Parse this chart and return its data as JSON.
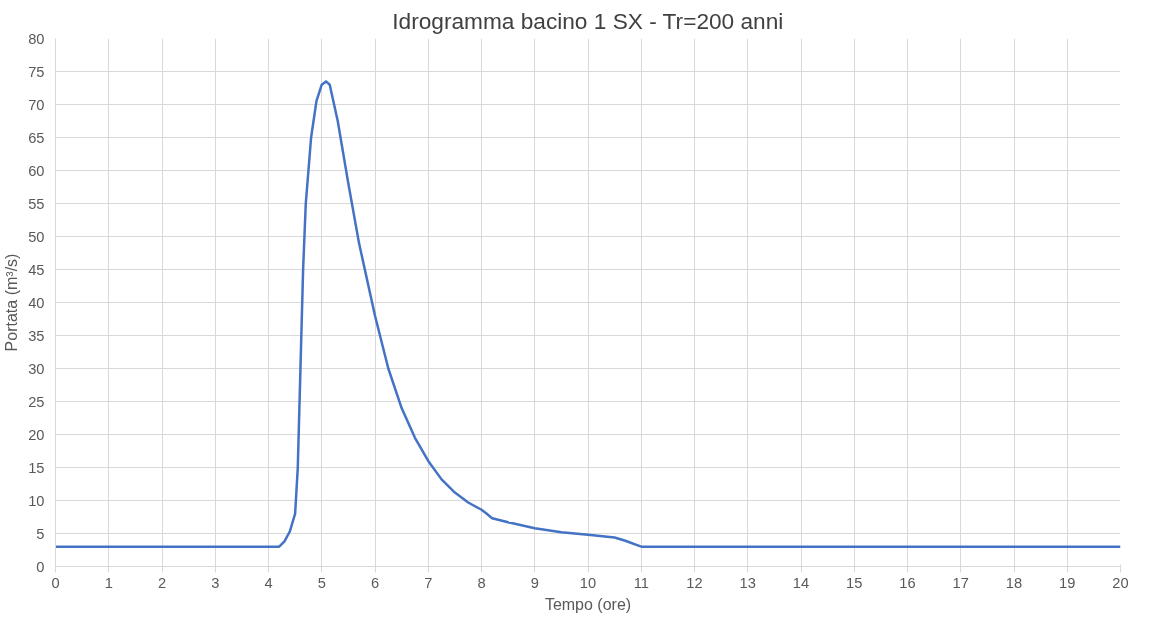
{
  "chart_data": {
    "type": "line",
    "title": "Idrogramma bacino 1 SX - Tr=200 anni",
    "xlabel": "Tempo (ore)",
    "ylabel": "Portata (m³/s)",
    "x": [
      0,
      4.2,
      4.3,
      4.4,
      4.5,
      4.55,
      4.6,
      4.65,
      4.7,
      4.8,
      4.9,
      5.0,
      5.08,
      5.15,
      5.3,
      5.5,
      5.7,
      6.0,
      6.25,
      6.5,
      6.75,
      7.0,
      7.25,
      7.5,
      7.75,
      8.0,
      8.1,
      8.2,
      8.5,
      9.0,
      9.5,
      10.0,
      10.5,
      10.7,
      11.0,
      20
    ],
    "series": [
      {
        "color": "#4472c4",
        "values": [
          3,
          3,
          3.8,
          5.3,
          8,
          15,
          30,
          45,
          55,
          65,
          70.5,
          73,
          73.5,
          73,
          67.5,
          58,
          49,
          38,
          30,
          24,
          19.5,
          16,
          13.2,
          11.2,
          9.7,
          8.6,
          8,
          7.3,
          6.7,
          5.8,
          5.2,
          4.8,
          4.4,
          3.9,
          3,
          3
        ]
      }
    ],
    "xlim": [
      0,
      20
    ],
    "xticks": [
      0,
      1,
      2,
      3,
      4,
      5,
      6,
      7,
      8,
      9,
      10,
      11,
      12,
      13,
      14,
      15,
      16,
      17,
      18,
      19,
      20
    ],
    "ylim": [
      0,
      80
    ],
    "yticks": [
      0,
      5,
      10,
      15,
      20,
      25,
      30,
      35,
      40,
      45,
      50,
      55,
      60,
      65,
      70,
      75,
      80
    ],
    "grid": true,
    "marker": "none",
    "line_style": "solid"
  }
}
